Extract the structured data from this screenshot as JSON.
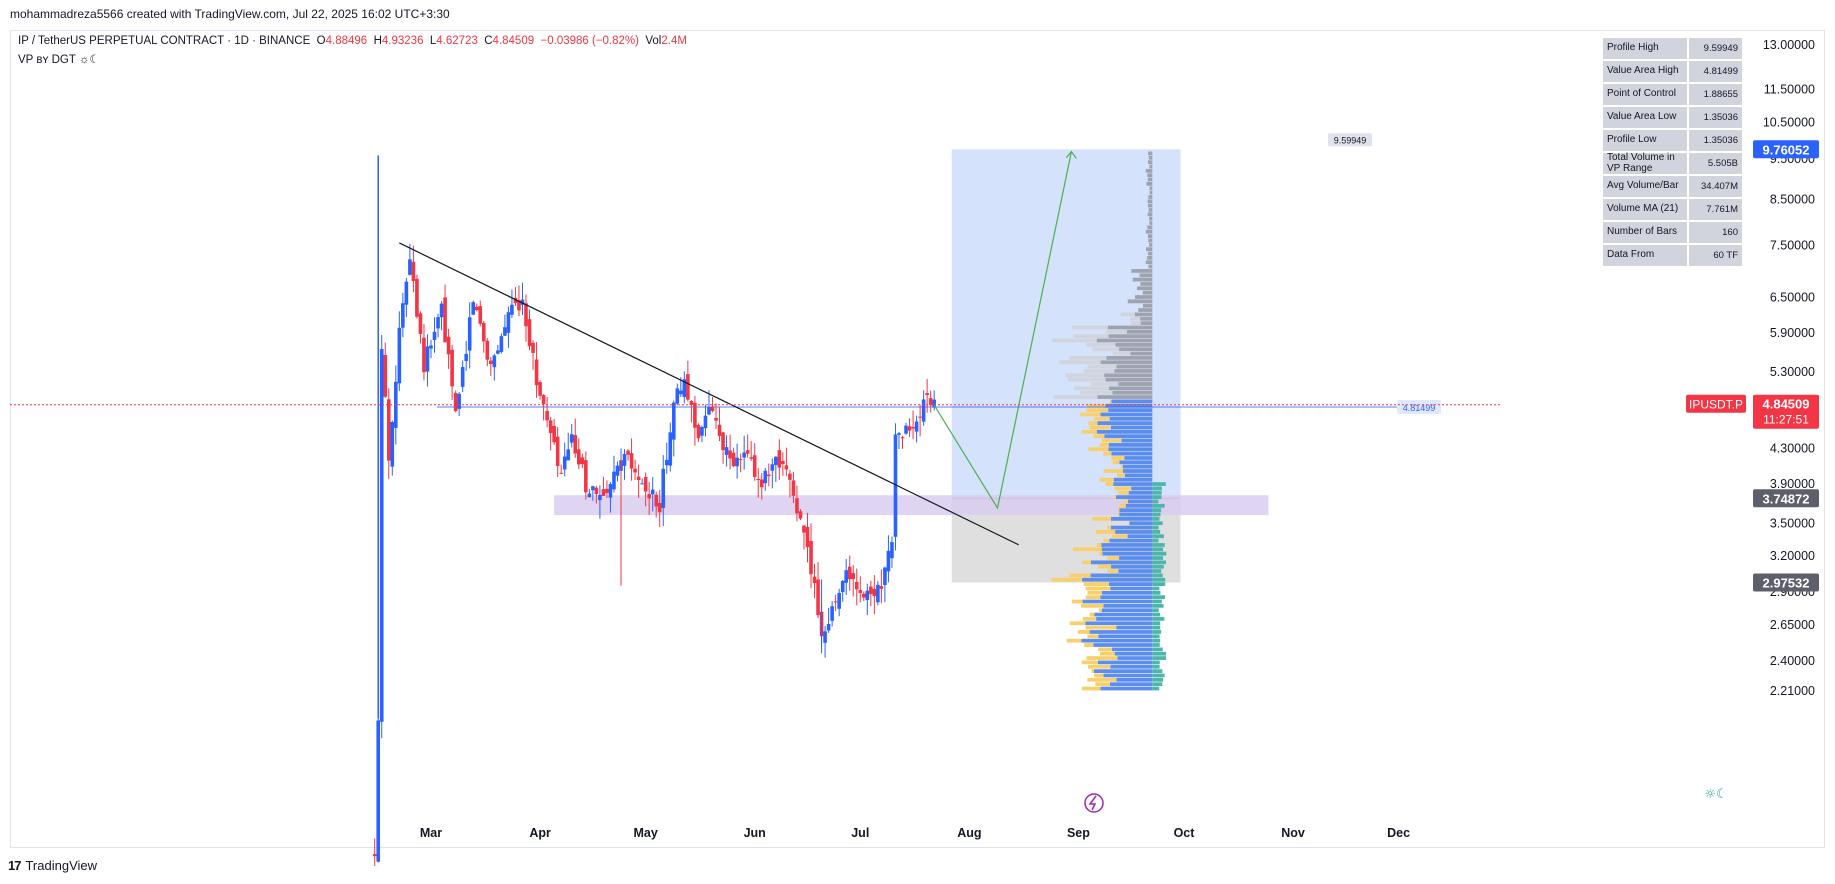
{
  "caption": "mohammadreza5566 created with TradingView.com, Jul 22, 2025 16:02 UTC+3:30",
  "legend": {
    "symbol": "IP / TetherUS PERPETUAL CONTRACT · 1D · BINANCE",
    "o_label": "O",
    "o": "4.88496",
    "h_label": "H",
    "h": "4.93236",
    "l_label": "L",
    "l": "4.62723",
    "c_label": "C",
    "c": "4.84509",
    "change": "−0.03986 (−0.82%)",
    "vol_label": "Vol",
    "vol": "2.4M",
    "indicator": "VP ʙʏ DGT ☼☾"
  },
  "stats": [
    {
      "label": "Profile High",
      "value": "9.59949"
    },
    {
      "label": "Value Area High",
      "value": "4.81499"
    },
    {
      "label": "Point of Control",
      "value": "1.88655"
    },
    {
      "label": "Value Area Low",
      "value": "1.35036"
    },
    {
      "label": "Profile Low",
      "value": "1.35036"
    },
    {
      "label": "Total Volume in VP Range",
      "value": "5.505B"
    },
    {
      "label": "Avg Volume/Bar",
      "value": "34.407M"
    },
    {
      "label": "Volume MA (21)",
      "value": "7.761M"
    },
    {
      "label": "Number of Bars",
      "value": "160"
    },
    {
      "label": "Data From",
      "value": "60 TF"
    }
  ],
  "footer": {
    "brand": "TradingView"
  },
  "colors": {
    "up": "#2962ff",
    "down": "#f23645",
    "target_zone": "#c7d8fb",
    "stop_zone": "#d9d9d9",
    "support_zone": "#d9cdf0",
    "vp_gray": "#9598a1",
    "vp_yellow": "#f7d06b",
    "vp_blue": "#5b8def",
    "vp_teal": "#4db6ac"
  },
  "chart_data": {
    "type": "candlestick",
    "symbol": "IPUSDT.P",
    "interval": "1D",
    "x_ticks": [
      "Mar",
      "Apr",
      "May",
      "Jun",
      "Jul",
      "Aug",
      "Sep",
      "Oct",
      "Nov",
      "Dec"
    ],
    "y_ticks": [
      13.0,
      11.5,
      10.5,
      9.5,
      8.5,
      7.5,
      6.5,
      5.9,
      5.3,
      4.3,
      3.9,
      3.5,
      3.2,
      2.9,
      2.65,
      2.4,
      2.21
    ],
    "y_tick_labels": [
      "13.00000",
      "11.50000",
      "10.50000",
      "9.50000",
      "8.50000",
      "7.50000",
      "6.50000",
      "5.90000",
      "5.30000",
      "4.30000",
      "3.90000",
      "3.50000",
      "3.20000",
      "2.90000",
      "2.65000",
      "2.40000",
      "2.21000"
    ],
    "y_scale": "log",
    "last_price": {
      "value": 4.84509,
      "label": "IPUSDT.P",
      "value_label": "4.84509",
      "countdown": "11:27:51"
    },
    "price_markers": [
      {
        "value": 9.76052,
        "label": "9.76052",
        "color": "#2962ff"
      },
      {
        "value": 3.74872,
        "label": "3.74872",
        "color": "#5d606b"
      },
      {
        "value": 2.97532,
        "label": "2.97532",
        "color": "#5d606b"
      }
    ],
    "profile_high_label": "9.59949",
    "value_area_high": {
      "value": 4.81499,
      "label": "4.81499"
    },
    "position": {
      "entry": 3.74872,
      "target": 9.76052,
      "stop": 2.97532
    },
    "support_zone": [
      3.58,
      3.78
    ],
    "trendline": {
      "from": {
        "date": "2025-02-20",
        "value": 7.55
      },
      "to": {
        "date": "2025-08-15",
        "value": 3.3
      }
    },
    "projection": [
      {
        "date": "2025-07-22",
        "value": 4.84
      },
      {
        "date": "2025-08-09",
        "value": 3.65
      },
      {
        "date": "2025-08-30",
        "value": 9.7
      }
    ],
    "candles_summary": "daily candles Feb 13 – Jul 22 2025; spike to ~9.6 mid-Feb, peak ~7.5 late Feb, decline to ~2.45 mid-June, breakout to ~5.1 mid-July",
    "price_path": [
      {
        "date": "2025-02-13",
        "value": 1.4
      },
      {
        "date": "2025-02-14",
        "value": 2.0
      },
      {
        "date": "2025-02-15",
        "value": 5.7
      },
      {
        "date": "2025-02-17",
        "value": 4.2
      },
      {
        "date": "2025-02-20",
        "value": 5.9
      },
      {
        "date": "2025-02-23",
        "value": 7.4
      },
      {
        "date": "2025-02-27",
        "value": 5.4
      },
      {
        "date": "2025-03-04",
        "value": 6.3
      },
      {
        "date": "2025-03-08",
        "value": 4.7
      },
      {
        "date": "2025-03-13",
        "value": 6.5
      },
      {
        "date": "2025-03-18",
        "value": 5.4
      },
      {
        "date": "2025-03-23",
        "value": 6.2
      },
      {
        "date": "2025-03-27",
        "value": 6.5
      },
      {
        "date": "2025-03-31",
        "value": 5.2
      },
      {
        "date": "2025-04-03",
        "value": 4.6
      },
      {
        "date": "2025-04-07",
        "value": 4.0
      },
      {
        "date": "2025-04-10",
        "value": 4.4
      },
      {
        "date": "2025-04-14",
        "value": 3.9
      },
      {
        "date": "2025-04-19",
        "value": 3.7
      },
      {
        "date": "2025-04-25",
        "value": 4.2
      },
      {
        "date": "2025-05-01",
        "value": 3.8
      },
      {
        "date": "2025-05-05",
        "value": 3.7
      },
      {
        "date": "2025-05-09",
        "value": 4.9
      },
      {
        "date": "2025-05-12",
        "value": 5.1
      },
      {
        "date": "2025-05-16",
        "value": 4.5
      },
      {
        "date": "2025-05-20",
        "value": 4.8
      },
      {
        "date": "2025-05-25",
        "value": 4.1
      },
      {
        "date": "2025-05-30",
        "value": 4.2
      },
      {
        "date": "2025-06-03",
        "value": 3.9
      },
      {
        "date": "2025-06-07",
        "value": 4.1
      },
      {
        "date": "2025-06-11",
        "value": 3.95
      },
      {
        "date": "2025-06-14",
        "value": 3.5
      },
      {
        "date": "2025-06-17",
        "value": 3.1
      },
      {
        "date": "2025-06-20",
        "value": 2.6
      },
      {
        "date": "2025-06-23",
        "value": 2.75
      },
      {
        "date": "2025-06-27",
        "value": 3.1
      },
      {
        "date": "2025-07-01",
        "value": 2.85
      },
      {
        "date": "2025-07-05",
        "value": 2.9
      },
      {
        "date": "2025-07-08",
        "value": 3.05
      },
      {
        "date": "2025-07-10",
        "value": 3.4
      },
      {
        "date": "2025-07-11",
        "value": 4.4
      },
      {
        "date": "2025-07-14",
        "value": 4.5
      },
      {
        "date": "2025-07-17",
        "value": 4.6
      },
      {
        "date": "2025-07-20",
        "value": 4.9
      },
      {
        "date": "2025-07-22",
        "value": 4.84509
      }
    ]
  }
}
